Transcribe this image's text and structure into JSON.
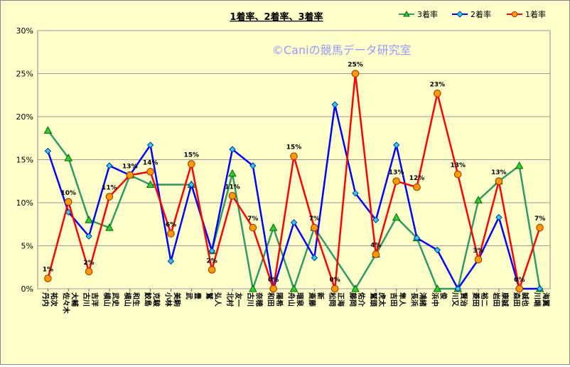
{
  "chart_data": {
    "type": "line",
    "title": "1着率、2着率、3着率",
    "watermark": "©Caniの競馬データ研究室",
    "ylim": [
      0,
      0.3
    ],
    "yticks": [
      "0%",
      "5%",
      "10%",
      "15%",
      "20%",
      "25%",
      "30%"
    ],
    "grid": "horizontal",
    "legend_position": "top-right",
    "colors": {
      "plot_bg": "#ffffcc",
      "grid": "#9a9a9a"
    },
    "categories": [
      "丹内 祐次",
      "佐々木 大輔",
      "古川 吉洋",
      "横山 武史",
      "横山 和生",
      "鮫島 克駿",
      "小林 美駒",
      "武 豊",
      "鷲 弘人",
      "北村 友一",
      "古川 奈穂",
      "和田 陽希",
      "舟山 瑠泉",
      "斎藤 新",
      "松岡 正海",
      "藤岡 佑介",
      "鷲頭 虎太",
      "吉田 隼人",
      "長浜 鴻緒",
      "浜中 俊",
      "川又 賢治",
      "菱田 裕二",
      "岩田 康誠",
      "森田 誠也",
      "川端 海翼"
    ],
    "series": [
      {
        "name": "3着率",
        "color": "#339966",
        "marker": "triangle",
        "marker_fill": "#33cc33",
        "values": [
          0.184,
          0.152,
          0.08,
          0.071,
          0.132,
          0.121,
          null,
          0.121,
          0.044,
          0.134,
          0.0,
          0.071,
          0.0,
          0.071,
          null,
          0.0,
          0.04,
          0.083,
          0.059,
          0.0,
          0.0,
          0.103,
          0.125,
          0.143,
          0.0
        ]
      },
      {
        "name": "2着率",
        "color": "#0000ff",
        "marker": "diamond",
        "marker_fill": "#33ccff",
        "values": [
          0.16,
          0.089,
          0.061,
          0.143,
          0.132,
          0.167,
          0.032,
          0.121,
          0.044,
          0.162,
          0.143,
          0.0,
          0.077,
          0.036,
          0.214,
          0.111,
          0.08,
          0.167,
          0.059,
          0.045,
          0.0,
          0.034,
          0.083,
          0.0,
          0.0
        ]
      },
      {
        "name": "1着率",
        "color": "#ff0000",
        "marker": "circle",
        "marker_fill": "#ff9900",
        "values": [
          0.012,
          0.101,
          0.02,
          0.107,
          0.132,
          0.136,
          0.064,
          0.145,
          0.022,
          0.108,
          0.071,
          0.0,
          0.154,
          0.071,
          0.0,
          0.25,
          0.04,
          0.125,
          0.118,
          0.227,
          0.133,
          0.034,
          0.125,
          0.0,
          0.071
        ],
        "data_labels": [
          "1%",
          "10%",
          "2%",
          "11%",
          "13%",
          "14%",
          "6%",
          "15%",
          "2%",
          "11%",
          "7%",
          "0%",
          "15%",
          "7%",
          "0%",
          "25%",
          "4%",
          "13%",
          "12%",
          "23%",
          "13%",
          "3%",
          "13%",
          "0%",
          "7%"
        ]
      }
    ]
  }
}
